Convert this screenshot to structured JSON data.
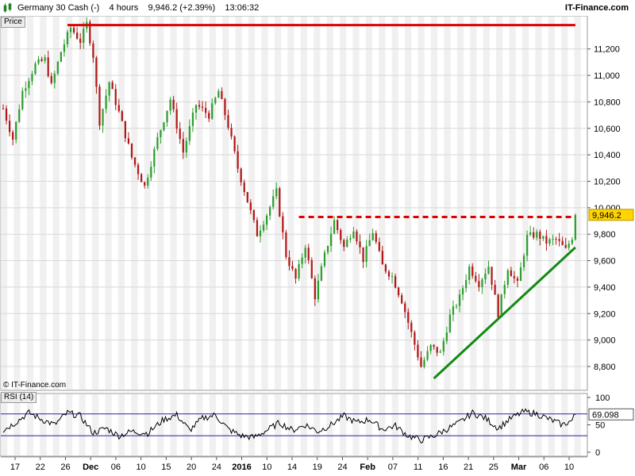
{
  "header": {
    "instrument": "Germany 30 Cash (-)",
    "timeframe": "4 hours",
    "price_change": "9,946.2 (+2.39%)",
    "time": "13:06:32",
    "brand": "IT-Finance.com"
  },
  "copyright": "© IT-Finance.com",
  "colors": {
    "up_candle": "#2e9e2e",
    "down_candle": "#b01818",
    "resistance_line": "#e00000",
    "support_trendline": "#138a13",
    "rsi_line": "#000000",
    "rsi_bands": "#2222aa",
    "price_badge": "#ffd400"
  },
  "chart_data": [
    {
      "type": "candlestick",
      "panel_label": "Price",
      "ylim": [
        8620,
        11450
      ],
      "yticks": [
        8800,
        9000,
        9200,
        9400,
        9600,
        9800,
        10000,
        10200,
        10400,
        10600,
        10800,
        11000,
        11200
      ],
      "ytick_labels": [
        "8,800",
        "9,000",
        "9,200",
        "9,400",
        "9,600",
        "9,800",
        "10,000",
        "10,200",
        "10,400",
        "10,600",
        "10,800",
        "11,000",
        "11,200"
      ],
      "last_price_label": "9,946.2",
      "last_price": 9946.2,
      "x_axis": {
        "tick_labels": [
          "17",
          "22",
          "26",
          "Dec",
          "06",
          "10",
          "15",
          "20",
          "24",
          "2016",
          "10",
          "14",
          "19",
          "24",
          "Feb",
          "07",
          "11",
          "16",
          "21",
          "25",
          "Mar",
          "06",
          "10"
        ],
        "bold_labels": [
          "Dec",
          "2016",
          "Feb",
          "Mar"
        ]
      },
      "series_path": [
        {
          "t": 0,
          "v": 10750
        },
        {
          "t": 3,
          "v": 10520
        },
        {
          "t": 6,
          "v": 10880
        },
        {
          "t": 10,
          "v": 11080
        },
        {
          "t": 13,
          "v": 11120
        },
        {
          "t": 15,
          "v": 10920
        },
        {
          "t": 18,
          "v": 11180
        },
        {
          "t": 21,
          "v": 11360
        },
        {
          "t": 24,
          "v": 11260
        },
        {
          "t": 26,
          "v": 11390
        },
        {
          "t": 28,
          "v": 11150
        },
        {
          "t": 30,
          "v": 10650
        },
        {
          "t": 33,
          "v": 10950
        },
        {
          "t": 36,
          "v": 10720
        },
        {
          "t": 40,
          "v": 10380
        },
        {
          "t": 44,
          "v": 10160
        },
        {
          "t": 48,
          "v": 10520
        },
        {
          "t": 52,
          "v": 10820
        },
        {
          "t": 56,
          "v": 10420
        },
        {
          "t": 60,
          "v": 10780
        },
        {
          "t": 64,
          "v": 10700
        },
        {
          "t": 67,
          "v": 10880
        },
        {
          "t": 70,
          "v": 10620
        },
        {
          "t": 73,
          "v": 10300
        },
        {
          "t": 76,
          "v": 10050
        },
        {
          "t": 79,
          "v": 9800
        },
        {
          "t": 82,
          "v": 9950
        },
        {
          "t": 85,
          "v": 10120
        },
        {
          "t": 88,
          "v": 9640
        },
        {
          "t": 91,
          "v": 9460
        },
        {
          "t": 94,
          "v": 9720
        },
        {
          "t": 97,
          "v": 9330
        },
        {
          "t": 100,
          "v": 9640
        },
        {
          "t": 103,
          "v": 9900
        },
        {
          "t": 106,
          "v": 9700
        },
        {
          "t": 109,
          "v": 9850
        },
        {
          "t": 112,
          "v": 9610
        },
        {
          "t": 115,
          "v": 9820
        },
        {
          "t": 118,
          "v": 9560
        },
        {
          "t": 121,
          "v": 9480
        },
        {
          "t": 124,
          "v": 9300
        },
        {
          "t": 127,
          "v": 9050
        },
        {
          "t": 130,
          "v": 8800
        },
        {
          "t": 133,
          "v": 8950
        },
        {
          "t": 136,
          "v": 8900
        },
        {
          "t": 139,
          "v": 9180
        },
        {
          "t": 142,
          "v": 9320
        },
        {
          "t": 145,
          "v": 9550
        },
        {
          "t": 148,
          "v": 9430
        },
        {
          "t": 151,
          "v": 9560
        },
        {
          "t": 154,
          "v": 9200
        },
        {
          "t": 157,
          "v": 9550
        },
        {
          "t": 160,
          "v": 9420
        },
        {
          "t": 163,
          "v": 9780
        },
        {
          "t": 166,
          "v": 9800
        },
        {
          "t": 169,
          "v": 9740
        },
        {
          "t": 172,
          "v": 9760
        },
        {
          "t": 175,
          "v": 9680
        },
        {
          "t": 177,
          "v": 9780
        },
        {
          "t": 178,
          "v": 9946
        }
      ],
      "annotations": [
        {
          "kind": "horizontal-line",
          "style": "solid",
          "value": 11380,
          "x_from": 20,
          "x_to": 178
        },
        {
          "kind": "horizontal-line",
          "style": "dashed",
          "value": 9930,
          "x_from": 92,
          "x_to": 178
        },
        {
          "kind": "trendline",
          "style": "solid",
          "from": {
            "t": 134,
            "v": 8710
          },
          "to": {
            "t": 178,
            "v": 9700
          }
        }
      ]
    },
    {
      "type": "line",
      "panel_label": "RSI (14)",
      "ylim": [
        0,
        100
      ],
      "yticks": [
        0,
        50,
        100
      ],
      "ytick_labels": [
        "0",
        "50",
        "100"
      ],
      "bands": [
        30,
        70
      ],
      "last_value_label": "69.098",
      "last_value": 69.098,
      "series_path": [
        {
          "t": 0,
          "v": 40
        },
        {
          "t": 4,
          "v": 55
        },
        {
          "t": 8,
          "v": 72
        },
        {
          "t": 12,
          "v": 60
        },
        {
          "t": 16,
          "v": 50
        },
        {
          "t": 20,
          "v": 72
        },
        {
          "t": 24,
          "v": 66
        },
        {
          "t": 28,
          "v": 35
        },
        {
          "t": 32,
          "v": 44
        },
        {
          "t": 36,
          "v": 30
        },
        {
          "t": 40,
          "v": 38
        },
        {
          "t": 45,
          "v": 35
        },
        {
          "t": 50,
          "v": 60
        },
        {
          "t": 54,
          "v": 68
        },
        {
          "t": 58,
          "v": 40
        },
        {
          "t": 62,
          "v": 62
        },
        {
          "t": 66,
          "v": 68
        },
        {
          "t": 70,
          "v": 42
        },
        {
          "t": 74,
          "v": 30
        },
        {
          "t": 78,
          "v": 27
        },
        {
          "t": 82,
          "v": 40
        },
        {
          "t": 86,
          "v": 54
        },
        {
          "t": 90,
          "v": 40
        },
        {
          "t": 94,
          "v": 50
        },
        {
          "t": 98,
          "v": 38
        },
        {
          "t": 102,
          "v": 50
        },
        {
          "t": 106,
          "v": 66
        },
        {
          "t": 110,
          "v": 54
        },
        {
          "t": 114,
          "v": 60
        },
        {
          "t": 118,
          "v": 42
        },
        {
          "t": 122,
          "v": 48
        },
        {
          "t": 126,
          "v": 30
        },
        {
          "t": 130,
          "v": 22
        },
        {
          "t": 134,
          "v": 30
        },
        {
          "t": 138,
          "v": 42
        },
        {
          "t": 142,
          "v": 54
        },
        {
          "t": 146,
          "v": 72
        },
        {
          "t": 150,
          "v": 62
        },
        {
          "t": 154,
          "v": 44
        },
        {
          "t": 158,
          "v": 62
        },
        {
          "t": 162,
          "v": 74
        },
        {
          "t": 166,
          "v": 70
        },
        {
          "t": 170,
          "v": 60
        },
        {
          "t": 174,
          "v": 50
        },
        {
          "t": 177,
          "v": 58
        },
        {
          "t": 178,
          "v": 69
        }
      ]
    }
  ]
}
